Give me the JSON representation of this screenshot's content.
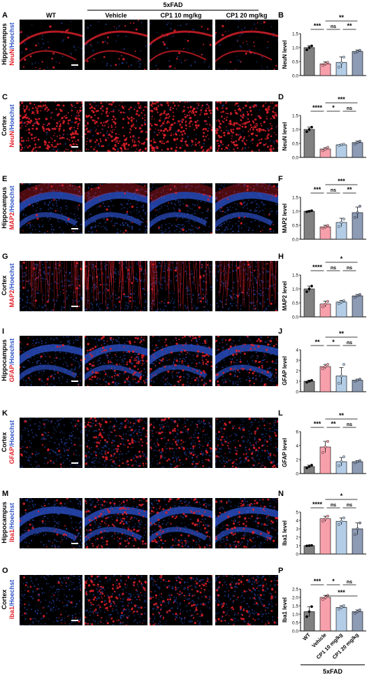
{
  "header": {
    "group_label": "5xFAD",
    "columns": [
      "WT",
      "Vehicle",
      "CP1 10 mg/kg",
      "CP1 20 mg/kg"
    ]
  },
  "rows": [
    {
      "img_letter": "A",
      "chart_letter": "B",
      "region": "Hippocampus",
      "stain": "NeuN",
      "counter": "Hoechst",
      "pattern": "hippo-neun"
    },
    {
      "img_letter": "C",
      "chart_letter": "D",
      "region": "Cortex",
      "stain": "NeuN",
      "counter": "Hoechst",
      "pattern": "cortex-neun"
    },
    {
      "img_letter": "E",
      "chart_letter": "F",
      "region": "Hippocampus",
      "stain": "MAP2",
      "counter": "Hoechst",
      "pattern": "hippo-map2"
    },
    {
      "img_letter": "G",
      "chart_letter": "H",
      "region": "Cortex",
      "stain": "MAP2",
      "counter": "Hoechst",
      "pattern": "cortex-map2"
    },
    {
      "img_letter": "I",
      "chart_letter": "J",
      "region": "Hippocampus",
      "stain": "GFAP",
      "counter": "Hoechst",
      "pattern": "hippo-gfap"
    },
    {
      "img_letter": "K",
      "chart_letter": "L",
      "region": "Cortex",
      "stain": "GFAP",
      "counter": "Hoechst",
      "pattern": "cortex-gfap"
    },
    {
      "img_letter": "M",
      "chart_letter": "N",
      "region": "Hippocampus",
      "stain": "Iba1",
      "counter": "Hoechst",
      "pattern": "hippo-iba1"
    },
    {
      "img_letter": "O",
      "chart_letter": "P",
      "region": "Cortex",
      "stain": "Iba1",
      "counter": "Hoechst",
      "pattern": "cortex-iba1"
    }
  ],
  "colors": {
    "bars": [
      "#808080",
      "#f7a0ab",
      "#b4cde6",
      "#8d9bb5"
    ],
    "stain_red": "#e0202a",
    "counter_blue": "#2b4fc4"
  },
  "chart_data": [
    {
      "type": "bar",
      "ylabel": "NeuN level",
      "ylim": [
        0,
        1.5
      ],
      "yticks": [
        "0.0",
        "0.5",
        "1.0",
        "1.5"
      ],
      "categories": [
        "WT",
        "Vehicle",
        "CP1 10 mg/kg",
        "CP1 20 mg/kg"
      ],
      "values": [
        1.0,
        0.42,
        0.47,
        0.86
      ],
      "errors": [
        0.07,
        0.07,
        0.2,
        0.05
      ],
      "points": [
        [
          0.92,
          1.0,
          1.06
        ],
        [
          0.36,
          0.42,
          0.47
        ],
        [
          0.3,
          0.45,
          0.66
        ],
        [
          0.82,
          0.86,
          0.9
        ]
      ],
      "sig": [
        {
          "from": 0,
          "to": 1,
          "level": 1,
          "label": "***"
        },
        {
          "from": 1,
          "to": 2,
          "level": 1,
          "label": "ns"
        },
        {
          "from": 2,
          "to": 3,
          "level": 1,
          "label": "**"
        },
        {
          "from": 1,
          "to": 3,
          "level": 2,
          "label": "**"
        }
      ]
    },
    {
      "type": "bar",
      "ylabel": "NeuN level",
      "ylim": [
        0,
        1.5
      ],
      "yticks": [
        "0.0",
        "0.5",
        "1.0",
        "1.5"
      ],
      "categories": [
        "WT",
        "Vehicle",
        "CP1 10 mg/kg",
        "CP1 20 mg/kg"
      ],
      "values": [
        1.0,
        0.3,
        0.45,
        0.53
      ],
      "errors": [
        0.08,
        0.05,
        0.02,
        0.05
      ],
      "points": [
        [
          0.92,
          1.0,
          1.08
        ],
        [
          0.24,
          0.29,
          0.36
        ],
        [
          0.43,
          0.45,
          0.47
        ],
        [
          0.48,
          0.53,
          0.58
        ]
      ],
      "sig": [
        {
          "from": 0,
          "to": 1,
          "level": 1,
          "label": "****"
        },
        {
          "from": 1,
          "to": 2,
          "level": 1,
          "label": "*"
        },
        {
          "from": 2,
          "to": 3,
          "level": 1,
          "label": "ns"
        },
        {
          "from": 1,
          "to": 3,
          "level": 2,
          "label": "***"
        }
      ]
    },
    {
      "type": "bar",
      "ylabel": "MAP2 level",
      "ylim": [
        0,
        1.5
      ],
      "yticks": [
        "0.0",
        "0.5",
        "1.0",
        "1.5"
      ],
      "categories": [
        "WT",
        "Vehicle",
        "CP1 10 mg/kg",
        "CP1 20 mg/kg"
      ],
      "values": [
        1.0,
        0.44,
        0.6,
        0.95
      ],
      "errors": [
        0.02,
        0.06,
        0.15,
        0.2
      ],
      "points": [
        [
          0.98,
          1.0,
          1.02
        ],
        [
          0.4,
          0.44,
          0.49
        ],
        [
          0.45,
          0.6,
          0.72
        ],
        [
          0.78,
          0.95,
          1.18
        ]
      ],
      "sig": [
        {
          "from": 0,
          "to": 1,
          "level": 1,
          "label": "***"
        },
        {
          "from": 1,
          "to": 2,
          "level": 1,
          "label": "ns"
        },
        {
          "from": 2,
          "to": 3,
          "level": 1,
          "label": "**"
        },
        {
          "from": 1,
          "to": 3,
          "level": 2,
          "label": "***"
        }
      ]
    },
    {
      "type": "bar",
      "ylabel": "MAP2 level",
      "ylim": [
        0,
        1.5
      ],
      "yticks": [
        "0.0",
        "0.5",
        "1.0",
        "1.5"
      ],
      "categories": [
        "WT",
        "Vehicle",
        "CP1 10 mg/kg",
        "CP1 20 mg/kg"
      ],
      "values": [
        1.0,
        0.46,
        0.53,
        0.75
      ],
      "errors": [
        0.1,
        0.1,
        0.06,
        0.05
      ],
      "points": [
        [
          0.9,
          1.0,
          1.1
        ],
        [
          0.36,
          0.46,
          0.55
        ],
        [
          0.47,
          0.53,
          0.58
        ],
        [
          0.7,
          0.75,
          0.8
        ]
      ],
      "sig": [
        {
          "from": 0,
          "to": 1,
          "level": 1,
          "label": "****"
        },
        {
          "from": 1,
          "to": 2,
          "level": 1,
          "label": "ns"
        },
        {
          "from": 2,
          "to": 3,
          "level": 1,
          "label": "ns"
        },
        {
          "from": 1,
          "to": 3,
          "level": 2,
          "label": "*"
        }
      ]
    },
    {
      "type": "bar",
      "ylabel": "GFAP level",
      "ylim": [
        0,
        4
      ],
      "yticks": [
        "0",
        "1",
        "2",
        "3",
        "4"
      ],
      "categories": [
        "WT",
        "Vehicle",
        "CP1 10 mg/kg",
        "CP1 20 mg/kg"
      ],
      "values": [
        1.0,
        2.4,
        1.5,
        1.1
      ],
      "errors": [
        0.1,
        0.2,
        0.8,
        0.1
      ],
      "points": [
        [
          0.9,
          1.0,
          1.08
        ],
        [
          2.2,
          2.4,
          2.6
        ],
        [
          0.8,
          1.5,
          2.6
        ],
        [
          1.0,
          1.1,
          1.2
        ]
      ],
      "sig": [
        {
          "from": 0,
          "to": 1,
          "level": 1,
          "label": "**"
        },
        {
          "from": 1,
          "to": 2,
          "level": 1,
          "label": "*"
        },
        {
          "from": 2,
          "to": 3,
          "level": 1,
          "label": "ns"
        },
        {
          "from": 1,
          "to": 3,
          "level": 2,
          "label": "**"
        }
      ]
    },
    {
      "type": "bar",
      "ylabel": "GFAP level",
      "ylim": [
        0,
        6
      ],
      "yticks": [
        "0",
        "2",
        "4",
        "6"
      ],
      "categories": [
        "WT",
        "Vehicle",
        "CP1 10 mg/kg",
        "CP1 20 mg/kg"
      ],
      "values": [
        1.0,
        3.8,
        1.7,
        1.7
      ],
      "errors": [
        0.2,
        0.8,
        0.6,
        0.15
      ],
      "points": [
        [
          0.8,
          1.0,
          1.2
        ],
        [
          3.0,
          3.8,
          4.6
        ],
        [
          1.1,
          1.7,
          2.4
        ],
        [
          1.55,
          1.7,
          1.85
        ]
      ],
      "sig": [
        {
          "from": 0,
          "to": 1,
          "level": 1,
          "label": "***"
        },
        {
          "from": 1,
          "to": 2,
          "level": 1,
          "label": "**"
        },
        {
          "from": 2,
          "to": 3,
          "level": 1,
          "label": "ns"
        },
        {
          "from": 1,
          "to": 3,
          "level": 2,
          "label": "**"
        }
      ]
    },
    {
      "type": "bar",
      "ylabel": "Iba1 level",
      "ylim": [
        0,
        5
      ],
      "yticks": [
        "0",
        "1",
        "2",
        "3",
        "4",
        "5"
      ],
      "categories": [
        "WT",
        "Vehicle",
        "CP1 10 mg/kg",
        "CP1 20 mg/kg"
      ],
      "values": [
        1.0,
        4.2,
        3.9,
        3.0
      ],
      "errors": [
        0.03,
        0.3,
        0.4,
        0.7
      ],
      "points": [
        [
          0.97,
          1.0,
          1.03
        ],
        [
          3.9,
          4.2,
          4.5
        ],
        [
          3.5,
          3.9,
          4.3
        ],
        [
          2.3,
          3.0,
          3.7
        ]
      ],
      "sig": [
        {
          "from": 0,
          "to": 1,
          "level": 1,
          "label": "****"
        },
        {
          "from": 1,
          "to": 2,
          "level": 1,
          "label": "ns"
        },
        {
          "from": 2,
          "to": 3,
          "level": 1,
          "label": "ns"
        },
        {
          "from": 1,
          "to": 3,
          "level": 2,
          "label": "*"
        }
      ]
    },
    {
      "type": "bar",
      "ylabel": "Iba1 level",
      "ylim": [
        0,
        2.5
      ],
      "yticks": [
        "0.0",
        "0.5",
        "1.0",
        "1.5",
        "2.0",
        "2.5"
      ],
      "categories": [
        "WT",
        "Vehicle",
        "CP1 10 mg/kg",
        "CP1 20 mg/kg"
      ],
      "values": [
        1.15,
        2.0,
        1.4,
        1.15
      ],
      "errors": [
        0.3,
        0.12,
        0.1,
        0.1
      ],
      "points": [
        [
          0.85,
          1.15,
          1.45
        ],
        [
          1.88,
          2.0,
          2.12
        ],
        [
          1.3,
          1.4,
          1.5
        ],
        [
          1.05,
          1.15,
          1.25
        ]
      ],
      "sig": [
        {
          "from": 0,
          "to": 1,
          "level": 1,
          "label": "***"
        },
        {
          "from": 1,
          "to": 2,
          "level": 1,
          "label": "*"
        },
        {
          "from": 2,
          "to": 3,
          "level": 1,
          "label": "ns"
        },
        {
          "from": 1,
          "to": 3,
          "level": 3,
          "label": "***"
        }
      ]
    }
  ],
  "x_axis_group_label": "5xFAD"
}
